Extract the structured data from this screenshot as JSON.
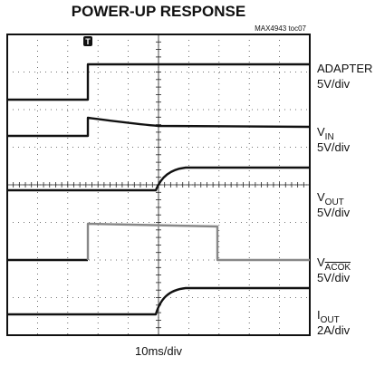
{
  "title": "POWER-UP RESPONSE",
  "figure_id": "MAX4943 toc07",
  "x_label": "10ms/div",
  "channels": [
    {
      "symbol": "ADAPTER",
      "scale": "5V/div"
    },
    {
      "symbol": "V",
      "subscript": "IN",
      "scale": "5V/div"
    },
    {
      "symbol": "V",
      "subscript": "OUT",
      "scale": "5V/div"
    },
    {
      "symbol": "V",
      "subscript": "ACOK",
      "scale": "5V/div"
    },
    {
      "symbol": "I",
      "subscript": "OUT",
      "scale": "2A/div"
    }
  ]
}
